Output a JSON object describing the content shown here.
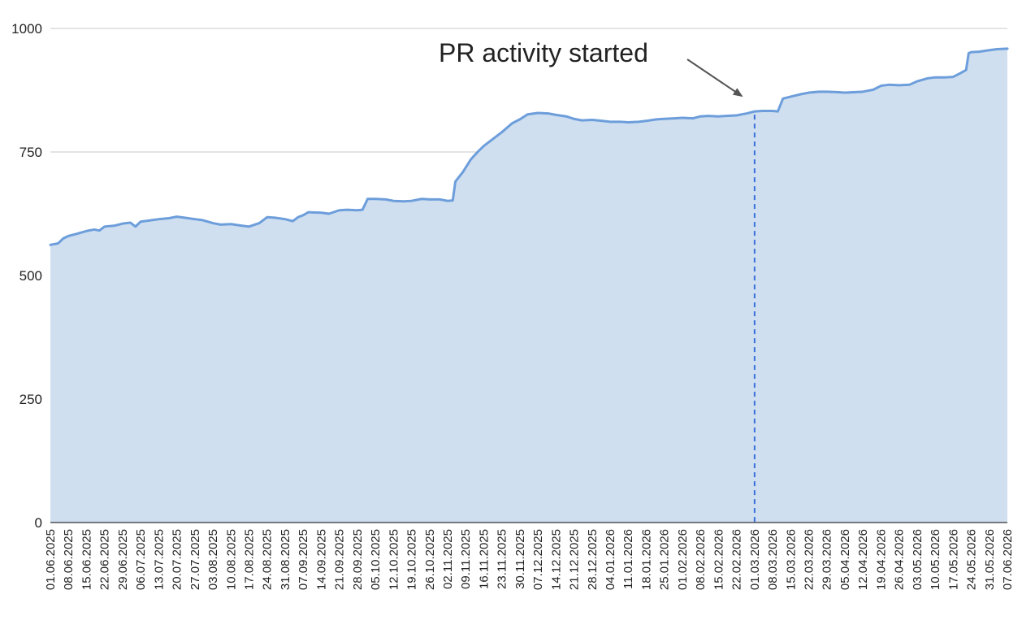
{
  "chart_data": {
    "type": "area",
    "title": "",
    "xlabel": "",
    "ylabel": "",
    "ylim": [
      0,
      1000
    ],
    "y_ticks": [
      0,
      250,
      500,
      750,
      1000
    ],
    "grid": true,
    "legend": "none",
    "colors": {
      "line": "#6d9edb",
      "fill": "#cfdff0",
      "marker_line": "#3a6fd8",
      "arrow": "#555555"
    },
    "x_ticks": [
      "01.06.2025",
      "08.06.2025",
      "15.06.2025",
      "22.06.2025",
      "29.06.2025",
      "06.07.2025",
      "13.07.2025",
      "20.07.2025",
      "27.07.2025",
      "03.08.2025",
      "10.08.2025",
      "17.08.2025",
      "24.08.2025",
      "31.08.2025",
      "07.09.2025",
      "14.09.2025",
      "21.09.2025",
      "28.09.2025",
      "05.10.2025",
      "12.10.2025",
      "19.10.2025",
      "26.10.2025",
      "02.11.2025",
      "09.11.2025",
      "16.11.2025",
      "23.11.2025",
      "30.11.2025",
      "07.12.2025",
      "14.12.2025",
      "21.12.2025",
      "28.12.2025",
      "04.01.2026",
      "11.01.2026",
      "18.01.2026",
      "25.01.2026",
      "01.02.2026",
      "08.02.2026",
      "15.02.2026",
      "22.02.2026",
      "01.03.2026",
      "08.03.2026",
      "15.03.2026",
      "22.03.2026",
      "29.03.2026",
      "05.04.2026",
      "12.04.2026",
      "19.04.2026",
      "26.04.2026",
      "03.05.2026",
      "10.05.2026",
      "17.05.2026",
      "24.05.2026",
      "31.05.2026",
      "07.06.2026"
    ],
    "series": [
      {
        "points": [
          [
            "01.06.2025",
            562
          ],
          [
            "04.06.2025",
            565
          ],
          [
            "06.06.2025",
            575
          ],
          [
            "08.06.2025",
            580
          ],
          [
            "11.06.2025",
            584
          ],
          [
            "15.06.2025",
            590
          ],
          [
            "18.06.2025",
            593
          ],
          [
            "20.06.2025",
            591
          ],
          [
            "22.06.2025",
            599
          ],
          [
            "26.06.2025",
            601
          ],
          [
            "29.06.2025",
            605
          ],
          [
            "02.07.2025",
            607
          ],
          [
            "04.07.2025",
            599
          ],
          [
            "06.07.2025",
            609
          ],
          [
            "09.07.2025",
            611
          ],
          [
            "13.07.2025",
            614
          ],
          [
            "17.07.2025",
            616
          ],
          [
            "20.07.2025",
            619
          ],
          [
            "23.07.2025",
            617
          ],
          [
            "27.07.2025",
            614
          ],
          [
            "30.07.2025",
            612
          ],
          [
            "03.08.2025",
            606
          ],
          [
            "06.08.2025",
            603
          ],
          [
            "10.08.2025",
            604
          ],
          [
            "14.08.2025",
            601
          ],
          [
            "17.08.2025",
            599
          ],
          [
            "21.08.2025",
            606
          ],
          [
            "24.08.2025",
            618
          ],
          [
            "27.08.2025",
            617
          ],
          [
            "31.08.2025",
            614
          ],
          [
            "03.09.2025",
            610
          ],
          [
            "05.09.2025",
            618
          ],
          [
            "07.09.2025",
            622
          ],
          [
            "09.09.2025",
            628
          ],
          [
            "14.09.2025",
            627
          ],
          [
            "17.09.2025",
            625
          ],
          [
            "21.09.2025",
            632
          ],
          [
            "24.09.2025",
            633
          ],
          [
            "28.09.2025",
            632
          ],
          [
            "30.09.2025",
            633
          ],
          [
            "02.10.2025",
            655
          ],
          [
            "05.10.2025",
            655
          ],
          [
            "09.10.2025",
            654
          ],
          [
            "12.10.2025",
            651
          ],
          [
            "16.10.2025",
            650
          ],
          [
            "19.10.2025",
            651
          ],
          [
            "23.10.2025",
            655
          ],
          [
            "26.10.2025",
            654
          ],
          [
            "30.10.2025",
            654
          ],
          [
            "02.11.2025",
            651
          ],
          [
            "04.11.2025",
            652
          ],
          [
            "05.11.2025",
            690
          ],
          [
            "08.11.2025",
            710
          ],
          [
            "11.11.2025",
            735
          ],
          [
            "14.11.2025",
            752
          ],
          [
            "16.11.2025",
            762
          ],
          [
            "20.11.2025",
            778
          ],
          [
            "23.11.2025",
            790
          ],
          [
            "27.11.2025",
            808
          ],
          [
            "30.11.2025",
            816
          ],
          [
            "03.12.2025",
            826
          ],
          [
            "07.12.2025",
            829
          ],
          [
            "11.12.2025",
            828
          ],
          [
            "14.12.2025",
            825
          ],
          [
            "18.12.2025",
            822
          ],
          [
            "21.12.2025",
            817
          ],
          [
            "24.12.2025",
            814
          ],
          [
            "28.12.2025",
            815
          ],
          [
            "01.01.2026",
            813
          ],
          [
            "04.01.2026",
            811
          ],
          [
            "08.01.2026",
            811
          ],
          [
            "11.01.2026",
            810
          ],
          [
            "15.01.2026",
            811
          ],
          [
            "18.01.2026",
            813
          ],
          [
            "22.01.2026",
            816
          ],
          [
            "25.01.2026",
            817
          ],
          [
            "29.01.2026",
            818
          ],
          [
            "01.02.2026",
            819
          ],
          [
            "05.02.2026",
            818
          ],
          [
            "08.02.2026",
            822
          ],
          [
            "11.02.2026",
            823
          ],
          [
            "15.02.2026",
            822
          ],
          [
            "18.02.2026",
            823
          ],
          [
            "22.02.2026",
            824
          ],
          [
            "26.02.2026",
            828
          ],
          [
            "01.03.2026",
            832
          ],
          [
            "04.03.2026",
            833
          ],
          [
            "08.03.2026",
            833
          ],
          [
            "10.03.2026",
            832
          ],
          [
            "12.03.2026",
            858
          ],
          [
            "15.03.2026",
            862
          ],
          [
            "19.03.2026",
            867
          ],
          [
            "22.03.2026",
            870
          ],
          [
            "26.03.2026",
            872
          ],
          [
            "29.03.2026",
            872
          ],
          [
            "02.04.2026",
            871
          ],
          [
            "05.04.2026",
            870
          ],
          [
            "09.04.2026",
            871
          ],
          [
            "12.04.2026",
            872
          ],
          [
            "16.04.2026",
            876
          ],
          [
            "19.04.2026",
            884
          ],
          [
            "22.04.2026",
            886
          ],
          [
            "26.04.2026",
            885
          ],
          [
            "30.04.2026",
            886
          ],
          [
            "03.05.2026",
            893
          ],
          [
            "07.05.2026",
            899
          ],
          [
            "10.05.2026",
            901
          ],
          [
            "14.05.2026",
            901
          ],
          [
            "17.05.2026",
            902
          ],
          [
            "20.05.2026",
            910
          ],
          [
            "22.05.2026",
            916
          ],
          [
            "23.05.2026",
            950
          ],
          [
            "24.05.2026",
            952
          ],
          [
            "27.05.2026",
            953
          ],
          [
            "31.05.2026",
            956
          ],
          [
            "03.06.2026",
            958
          ],
          [
            "07.06.2026",
            959
          ]
        ]
      }
    ],
    "annotations": [
      {
        "text": "PR activity started",
        "x": "01.03.2026",
        "marker": "dashed-vertical-line"
      }
    ]
  }
}
